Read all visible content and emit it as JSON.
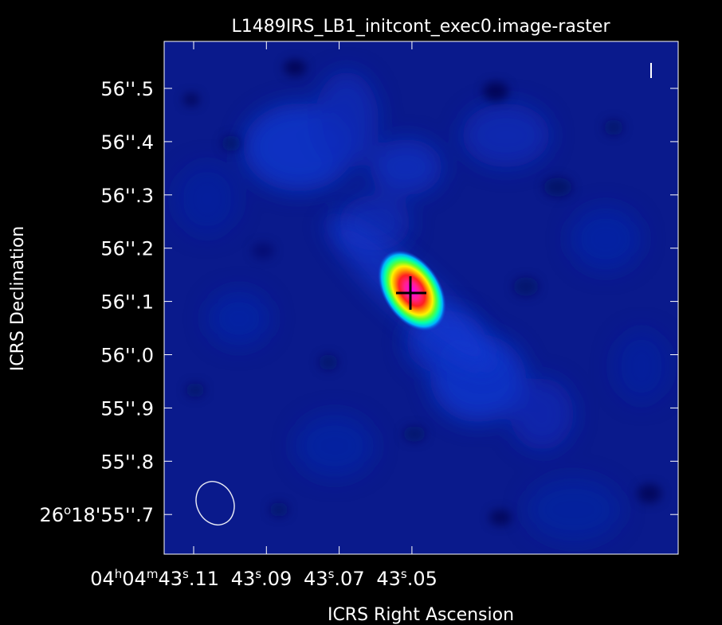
{
  "title": "L1489IRS_LB1_initcont_exec0.image-raster",
  "x_axis": {
    "label": "ICRS Right Ascension",
    "ticks": [
      {
        "prefix": "04",
        "h": "h",
        "m_val": "04",
        "m": "m",
        "sec_int": "43",
        "s": "s",
        "sec_frac": ".11",
        "offset": 0.11
      },
      {
        "prefix": "",
        "h": "",
        "m_val": "",
        "m": "",
        "sec_int": "43",
        "s": "s",
        "sec_frac": ".09",
        "offset": 0.09
      },
      {
        "prefix": "",
        "h": "",
        "m_val": "",
        "m": "",
        "sec_int": "43",
        "s": "s",
        "sec_frac": ".07",
        "offset": 0.07
      },
      {
        "prefix": "",
        "h": "",
        "m_val": "",
        "m": "",
        "sec_int": "43",
        "s": "s",
        "sec_frac": ".05",
        "offset": 0.05
      }
    ]
  },
  "y_axis": {
    "label": "ICRS Declination",
    "ticks": [
      {
        "text": "56''.5",
        "value": 56.5
      },
      {
        "text": "56''.4",
        "value": 56.4
      },
      {
        "text": "56''.3",
        "value": 56.3
      },
      {
        "text": "56''.2",
        "value": 56.2
      },
      {
        "text": "56''.1",
        "value": 56.1
      },
      {
        "text": "56''.0",
        "value": 56.0
      },
      {
        "text": "55''.9",
        "value": 55.9
      },
      {
        "text": "55''.8",
        "value": 55.8
      },
      {
        "deg": "26",
        "deg_sym": "o",
        "rest": "18'55''.7",
        "value": 55.7
      }
    ]
  },
  "image": {
    "colormap": "rainbow",
    "background_color": "#0a1a8c",
    "source_marker": "cross",
    "beam_shape": "ellipse"
  },
  "colors": {
    "background": "#000000",
    "frame": "#ffffff",
    "text": "#ffffff",
    "cross": "#000000"
  }
}
